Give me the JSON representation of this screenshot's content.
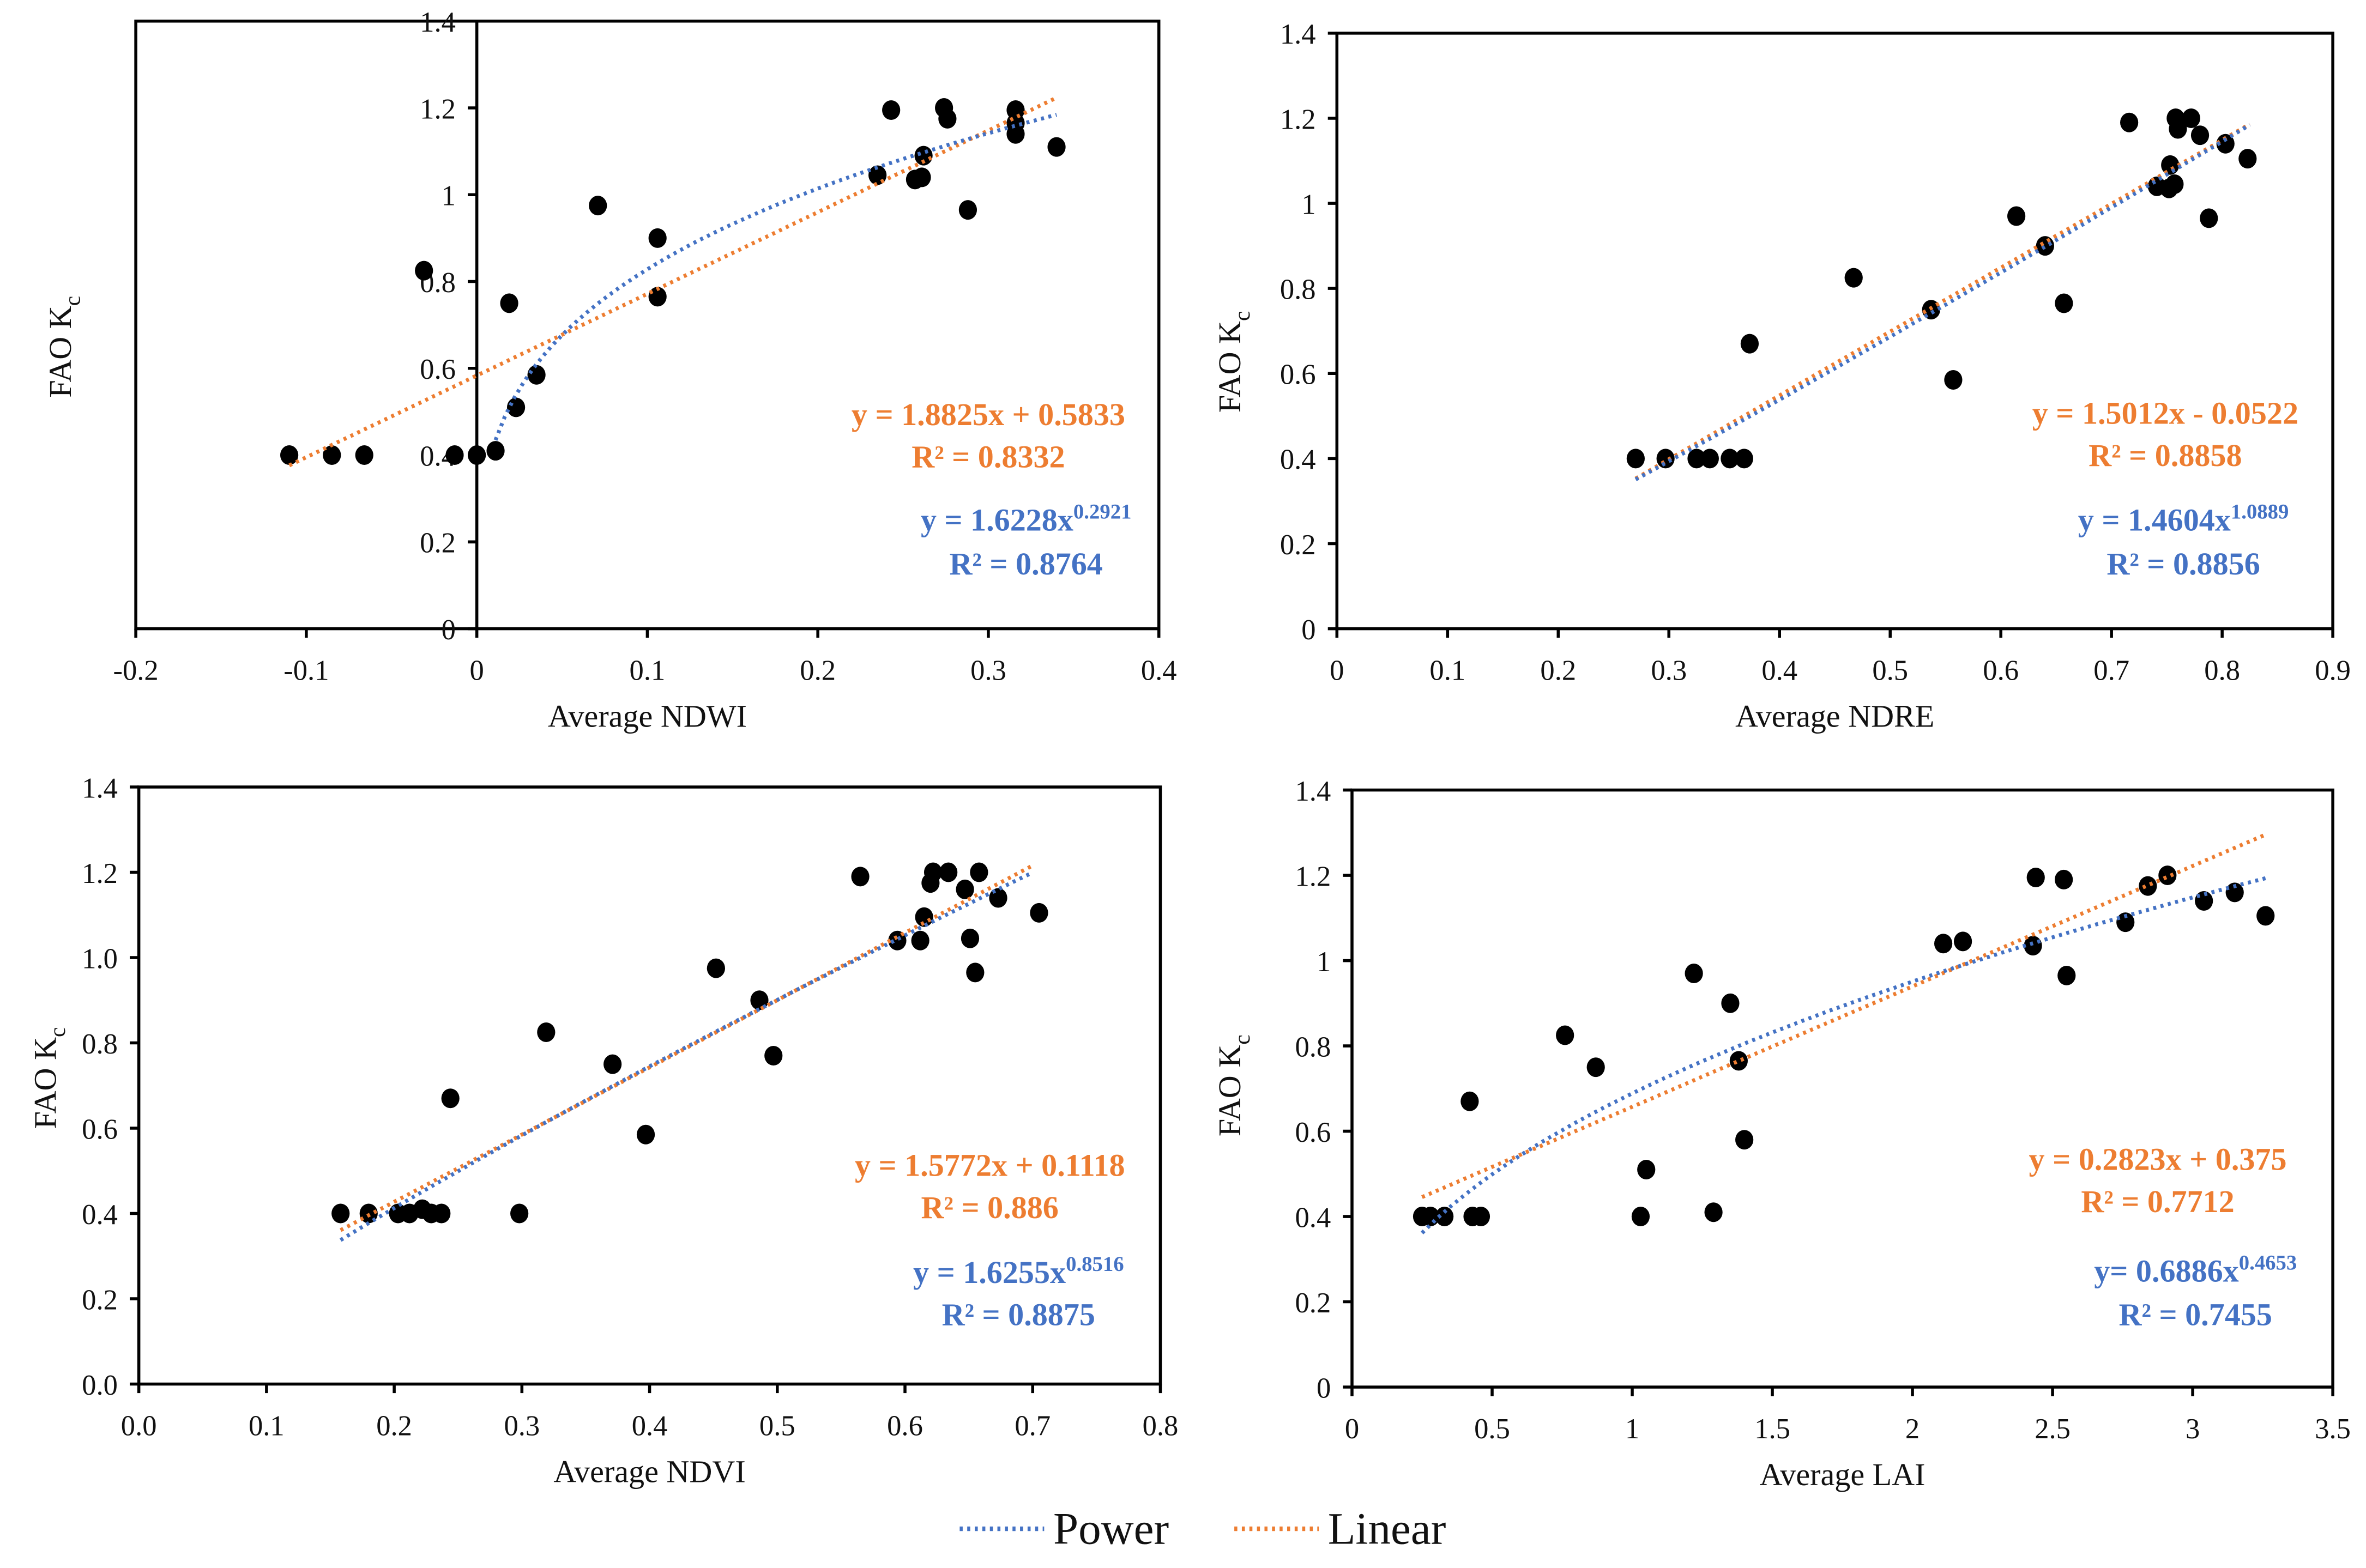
{
  "colors": {
    "power": "#4472C4",
    "linear": "#ED7D31",
    "point": "#000000"
  },
  "legend": [
    {
      "label": "Power",
      "color": "#4472C4"
    },
    {
      "label": "Linear",
      "color": "#ED7D31"
    }
  ],
  "chart_data": [
    {
      "type": "scatter",
      "title": "",
      "xlabel": "Average NDWI",
      "ylabel": "FAO K",
      "ylabel_sub": "c",
      "xlim": [
        -0.2,
        0.4
      ],
      "ylim": [
        0,
        1.4
      ],
      "xticks": [
        "-0.2",
        "-0.1",
        "0",
        "0.1",
        "0.2",
        "0.3",
        "0.4"
      ],
      "yticks": [
        "0",
        "0.2",
        "0.4",
        "0.6",
        "0.8",
        "1",
        "1.2",
        "1.4"
      ],
      "xtick_values": [
        -0.2,
        -0.1,
        0,
        0.1,
        0.2,
        0.3,
        0.4
      ],
      "ytick_values": [
        0,
        0.2,
        0.4,
        0.6,
        0.8,
        1,
        1.2,
        1.4
      ],
      "yaxis_at_zero": true,
      "points": [
        [
          -0.11,
          0.4
        ],
        [
          -0.085,
          0.4
        ],
        [
          -0.066,
          0.4
        ],
        [
          -0.031,
          0.825
        ],
        [
          -0.013,
          0.4
        ],
        [
          0.0,
          0.4
        ],
        [
          0.011,
          0.41
        ],
        [
          0.019,
          0.75
        ],
        [
          0.023,
          0.51
        ],
        [
          0.035,
          0.585
        ],
        [
          0.071,
          0.975
        ],
        [
          0.106,
          0.9
        ],
        [
          0.106,
          0.765
        ],
        [
          0.235,
          1.045
        ],
        [
          0.243,
          1.195
        ],
        [
          0.257,
          1.035
        ],
        [
          0.261,
          1.04
        ],
        [
          0.262,
          1.09
        ],
        [
          0.274,
          1.2
        ],
        [
          0.276,
          1.175
        ],
        [
          0.288,
          0.965
        ],
        [
          0.316,
          1.195
        ],
        [
          0.316,
          1.14
        ],
        [
          0.316,
          1.165
        ],
        [
          0.34,
          1.11
        ]
      ],
      "linear": {
        "slope": 1.8825,
        "intercept": 0.5833,
        "xrange": [
          -0.11,
          0.34
        ],
        "equation": "y = 1.8825x + 0.5833",
        "r2": "R² = 0.8332"
      },
      "power": {
        "coef": 1.6228,
        "exp": 0.2921,
        "xrange": [
          0.011,
          0.34
        ],
        "equation": "y = 1.6228x",
        "exponent": "0.2921",
        "r2": "R² = 0.8764"
      }
    },
    {
      "type": "scatter",
      "title": "",
      "xlabel": "Average NDRE",
      "ylabel": "FAO K",
      "ylabel_sub": "c",
      "xlim": [
        0,
        0.9
      ],
      "ylim": [
        0,
        1.4
      ],
      "xticks": [
        "0",
        "0.1",
        "0.2",
        "0.3",
        "0.4",
        "0.5",
        "0.6",
        "0.7",
        "0.8",
        "0.9"
      ],
      "yticks": [
        "0",
        "0.2",
        "0.4",
        "0.6",
        "0.8",
        "1",
        "1.2",
        "1.4"
      ],
      "xtick_values": [
        0,
        0.1,
        0.2,
        0.3,
        0.4,
        0.5,
        0.6,
        0.7,
        0.8,
        0.9
      ],
      "ytick_values": [
        0,
        0.2,
        0.4,
        0.6,
        0.8,
        1,
        1.2,
        1.4
      ],
      "points": [
        [
          0.27,
          0.4
        ],
        [
          0.297,
          0.4
        ],
        [
          0.325,
          0.4
        ],
        [
          0.337,
          0.4
        ],
        [
          0.355,
          0.4
        ],
        [
          0.368,
          0.4
        ],
        [
          0.373,
          0.67
        ],
        [
          0.467,
          0.825
        ],
        [
          0.537,
          0.75
        ],
        [
          0.557,
          0.585
        ],
        [
          0.614,
          0.97
        ],
        [
          0.64,
          0.9
        ],
        [
          0.657,
          0.765
        ],
        [
          0.716,
          1.19
        ],
        [
          0.741,
          1.04
        ],
        [
          0.752,
          1.035
        ],
        [
          0.753,
          1.09
        ],
        [
          0.757,
          1.045
        ],
        [
          0.758,
          1.2
        ],
        [
          0.76,
          1.175
        ],
        [
          0.772,
          1.2
        ],
        [
          0.78,
          1.16
        ],
        [
          0.788,
          0.965
        ],
        [
          0.803,
          1.14
        ],
        [
          0.823,
          1.105
        ]
      ],
      "linear": {
        "slope": 1.5012,
        "intercept": -0.0522,
        "xrange": [
          0.27,
          0.825
        ],
        "equation": "y = 1.5012x - 0.0522",
        "r2": "R² = 0.8858"
      },
      "power": {
        "coef": 1.4604,
        "exp": 1.0889,
        "xrange": [
          0.27,
          0.825
        ],
        "equation": "y = 1.4604x",
        "exponent": "1.0889",
        "r2": "R² = 0.8856"
      }
    },
    {
      "type": "scatter",
      "title": "",
      "xlabel": "Average NDVI",
      "ylabel": "FAO K",
      "ylabel_sub": "c",
      "xlim": [
        0,
        0.8
      ],
      "ylim": [
        0,
        1.4
      ],
      "xticks": [
        "0.0",
        "0.1",
        "0.2",
        "0.3",
        "0.4",
        "0.5",
        "0.6",
        "0.7",
        "0.8"
      ],
      "yticks": [
        "0.0",
        "0.2",
        "0.4",
        "0.6",
        "0.8",
        "1.0",
        "1.2",
        "1.4"
      ],
      "xtick_values": [
        0,
        0.1,
        0.2,
        0.3,
        0.4,
        0.5,
        0.6,
        0.7,
        0.8
      ],
      "ytick_values": [
        0,
        0.2,
        0.4,
        0.6,
        0.8,
        1,
        1.2,
        1.4
      ],
      "points": [
        [
          0.158,
          0.4
        ],
        [
          0.18,
          0.4
        ],
        [
          0.203,
          0.4
        ],
        [
          0.212,
          0.4
        ],
        [
          0.222,
          0.41
        ],
        [
          0.229,
          0.4
        ],
        [
          0.237,
          0.4
        ],
        [
          0.244,
          0.67
        ],
        [
          0.298,
          0.4
        ],
        [
          0.319,
          0.825
        ],
        [
          0.371,
          0.75
        ],
        [
          0.397,
          0.585
        ],
        [
          0.452,
          0.975
        ],
        [
          0.486,
          0.9
        ],
        [
          0.497,
          0.77
        ],
        [
          0.565,
          1.19
        ],
        [
          0.594,
          1.04
        ],
        [
          0.612,
          1.04
        ],
        [
          0.615,
          1.095
        ],
        [
          0.62,
          1.175
        ],
        [
          0.622,
          1.2
        ],
        [
          0.634,
          1.2
        ],
        [
          0.647,
          1.16
        ],
        [
          0.651,
          1.045
        ],
        [
          0.655,
          0.965
        ],
        [
          0.658,
          1.2
        ],
        [
          0.673,
          1.14
        ],
        [
          0.705,
          1.105
        ]
      ],
      "linear": {
        "slope": 1.5772,
        "intercept": 0.1118,
        "xrange": [
          0.158,
          0.7
        ],
        "equation": "y = 1.5772x + 0.1118",
        "r2": "R² = 0.886"
      },
      "power": {
        "coef": 1.6255,
        "exp": 0.8516,
        "xrange": [
          0.158,
          0.7
        ],
        "equation": "y = 1.6255x",
        "exponent": "0.8516",
        "r2": "R² = 0.8875"
      }
    },
    {
      "type": "scatter",
      "title": "",
      "xlabel": "Average LAI",
      "ylabel": "FAO K",
      "ylabel_sub": "c",
      "xlim": [
        0,
        3.5
      ],
      "ylim": [
        0,
        1.4
      ],
      "xticks": [
        "0",
        "0.5",
        "1",
        "1.5",
        "2",
        "2.5",
        "3",
        "3.5"
      ],
      "yticks": [
        "0",
        "0.2",
        "0.4",
        "0.6",
        "0.8",
        "1",
        "1.2",
        "1.4"
      ],
      "xtick_values": [
        0,
        0.5,
        1,
        1.5,
        2,
        2.5,
        3,
        3.5
      ],
      "ytick_values": [
        0,
        0.2,
        0.4,
        0.6,
        0.8,
        1,
        1.2,
        1.4
      ],
      "points": [
        [
          0.25,
          0.4
        ],
        [
          0.28,
          0.4
        ],
        [
          0.33,
          0.4
        ],
        [
          0.42,
          0.67
        ],
        [
          0.43,
          0.4
        ],
        [
          0.46,
          0.4
        ],
        [
          0.76,
          0.825
        ],
        [
          0.87,
          0.75
        ],
        [
          1.03,
          0.4
        ],
        [
          1.05,
          0.51
        ],
        [
          1.22,
          0.97
        ],
        [
          1.29,
          0.41
        ],
        [
          1.35,
          0.9
        ],
        [
          1.38,
          0.765
        ],
        [
          1.4,
          0.58
        ],
        [
          2.11,
          1.04
        ],
        [
          2.18,
          1.045
        ],
        [
          2.43,
          1.035
        ],
        [
          2.44,
          1.195
        ],
        [
          2.54,
          1.19
        ],
        [
          2.55,
          0.965
        ],
        [
          2.76,
          1.09
        ],
        [
          2.84,
          1.175
        ],
        [
          2.91,
          1.2
        ],
        [
          3.04,
          1.14
        ],
        [
          3.15,
          1.16
        ],
        [
          3.26,
          1.105
        ]
      ],
      "linear": {
        "slope": 0.2823,
        "intercept": 0.375,
        "xrange": [
          0.25,
          3.26
        ],
        "equation": "y = 0.2823x + 0.375",
        "r2": "R² = 0.7712"
      },
      "power": {
        "coef": 0.6886,
        "exp": 0.4653,
        "xrange": [
          0.25,
          3.26
        ],
        "equation": "y= 0.6886x",
        "exponent": "0.4653",
        "r2": "R² = 0.7455"
      }
    }
  ]
}
